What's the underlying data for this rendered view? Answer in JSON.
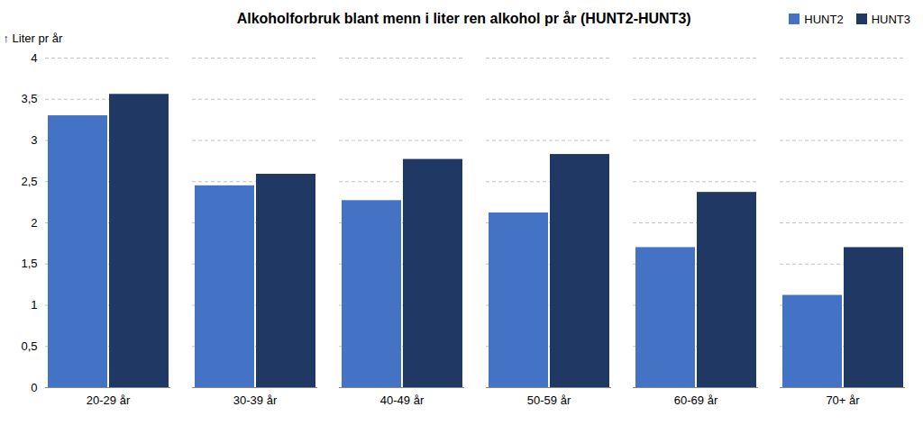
{
  "chart_data": {
    "type": "bar",
    "title": "Alkoholforbruk blant menn i liter ren alkohol pr år (HUNT2-HUNT3)",
    "ylabel": "Liter pr år",
    "categories": [
      "20-29 år",
      "30-39 år",
      "40-49 år",
      "50-59 år",
      "60-69 år",
      "70+ år"
    ],
    "series": [
      {
        "name": "HUNT2",
        "color": "#4472C4",
        "values": [
          3.3,
          2.45,
          2.27,
          2.12,
          1.7,
          1.12
        ]
      },
      {
        "name": "HUNT3",
        "color": "#1F3864",
        "values": [
          3.56,
          2.59,
          2.77,
          2.83,
          2.37,
          1.7
        ]
      }
    ],
    "ylim": [
      0,
      4
    ],
    "yticks": [
      0,
      {
        "value": 0.5,
        "label": "0,5"
      },
      1,
      {
        "value": 1.5,
        "label": "1,5"
      },
      2,
      {
        "value": 2.5,
        "label": "2,5"
      },
      3,
      {
        "value": 3.5,
        "label": "3,5"
      },
      4
    ],
    "grid": true,
    "legend": "upper right"
  }
}
